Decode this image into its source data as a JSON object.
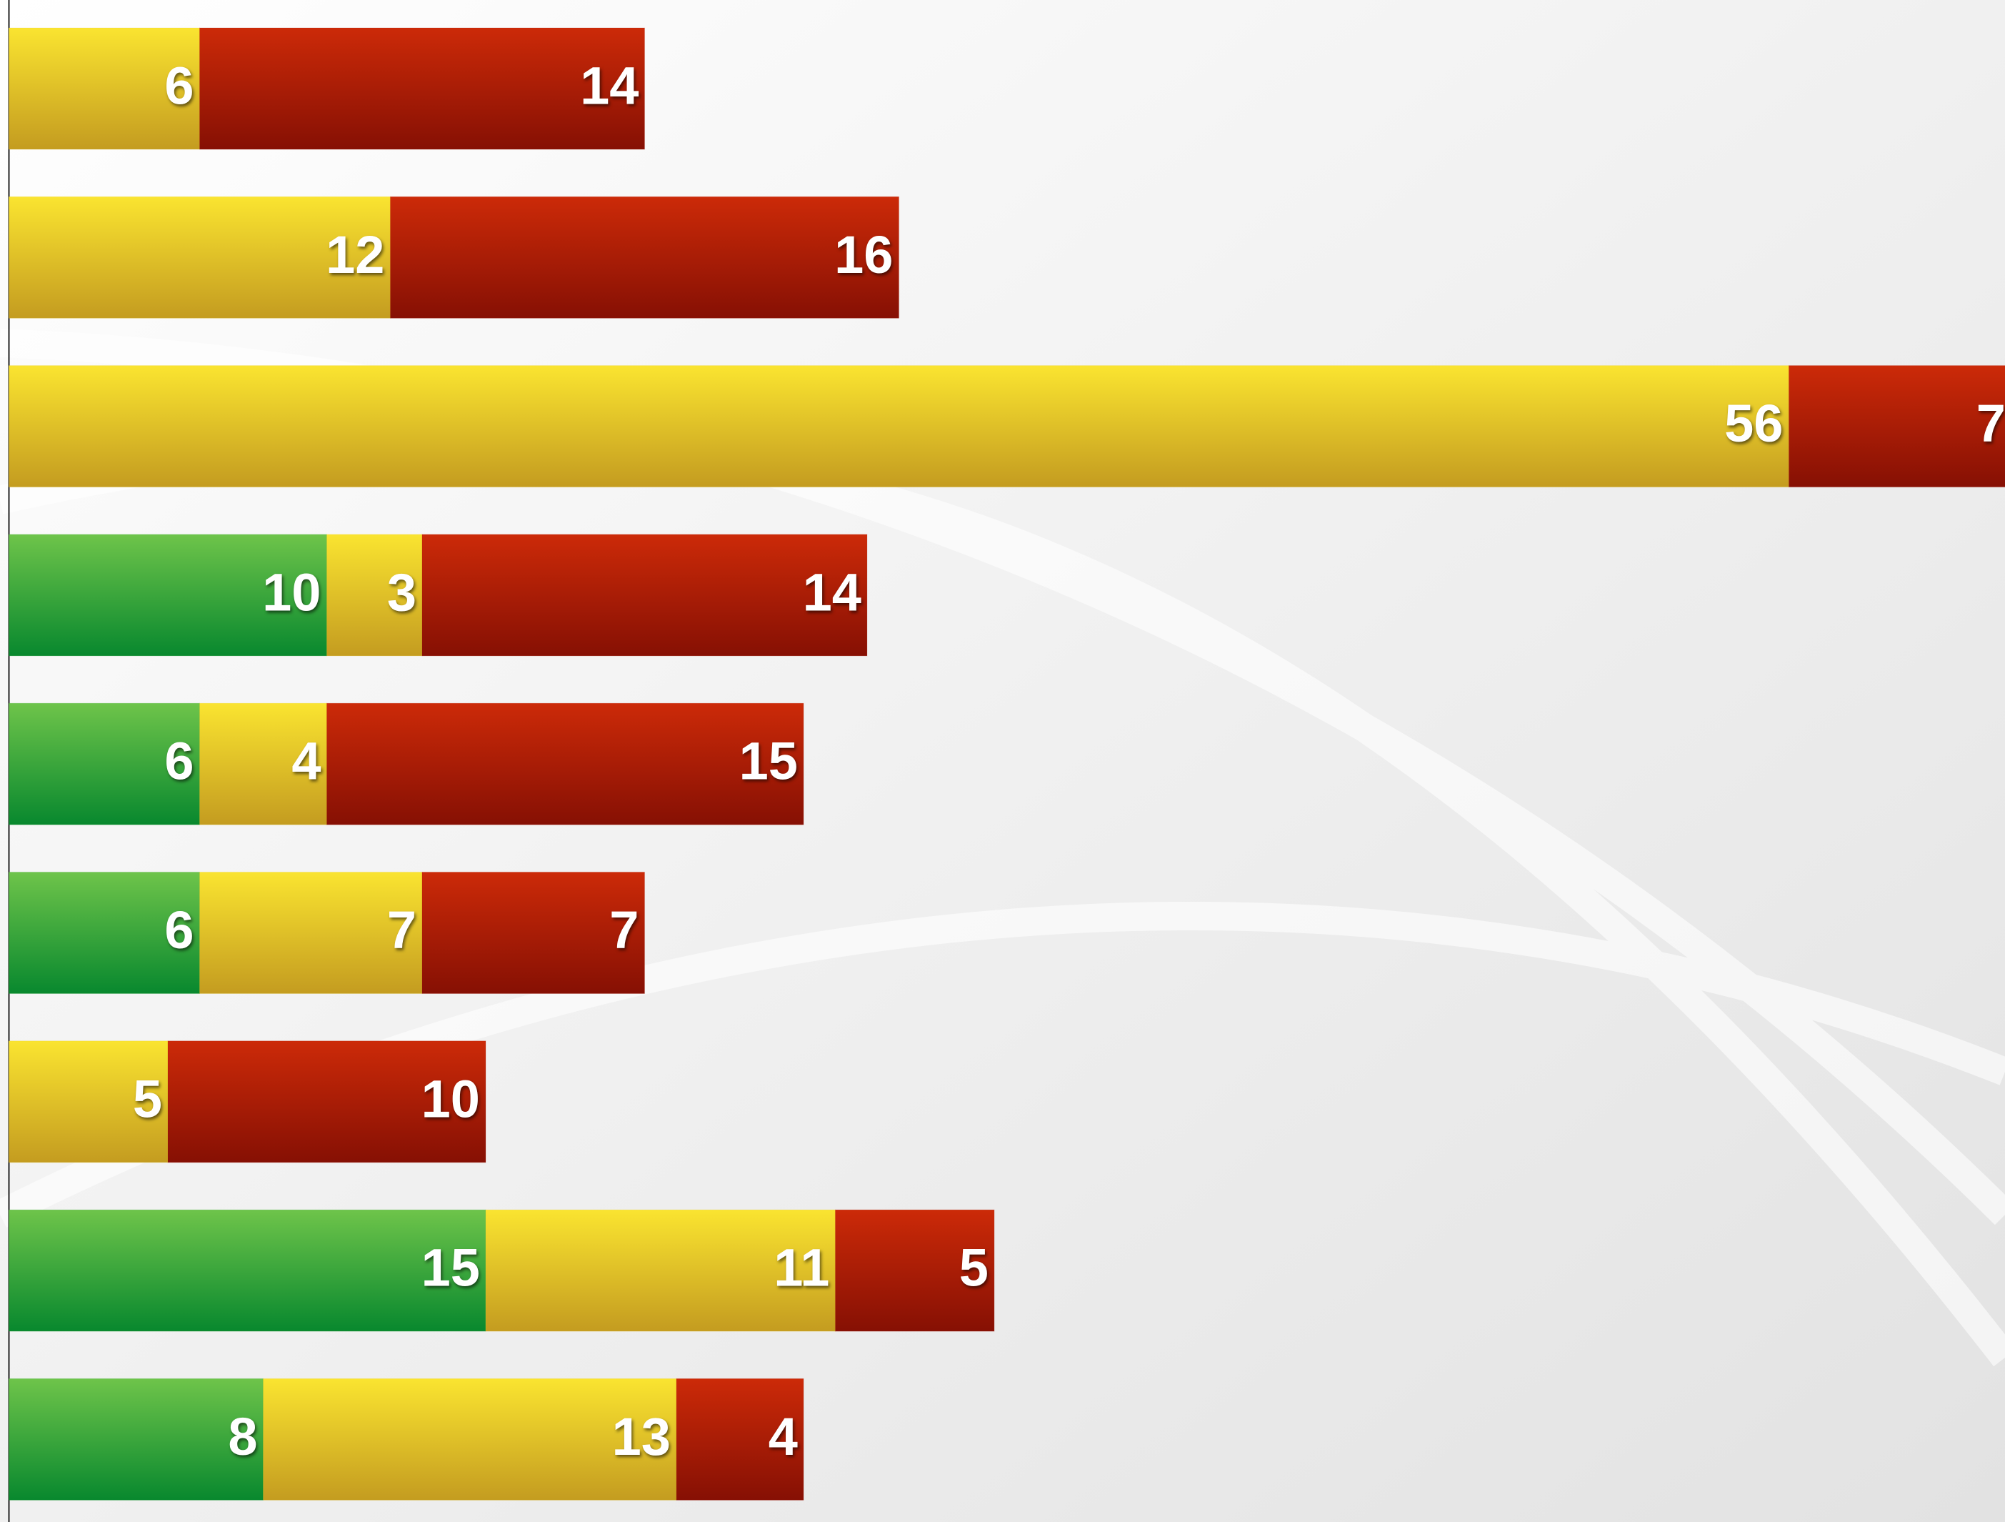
{
  "chart_data": {
    "type": "bar",
    "orientation": "horizontal",
    "stacked": true,
    "xlim": [
      0,
      62.8
    ],
    "series": [
      {
        "color": "#3aa83c",
        "values": [
          null,
          null,
          null,
          10,
          6,
          6,
          null,
          15,
          8
        ]
      },
      {
        "color": "#e8c828",
        "values": [
          6,
          12,
          56,
          3,
          4,
          7,
          5,
          11,
          13
        ]
      },
      {
        "color": "#b01c08",
        "values": [
          14,
          16,
          7,
          14,
          15,
          7,
          10,
          5,
          4
        ]
      }
    ]
  }
}
